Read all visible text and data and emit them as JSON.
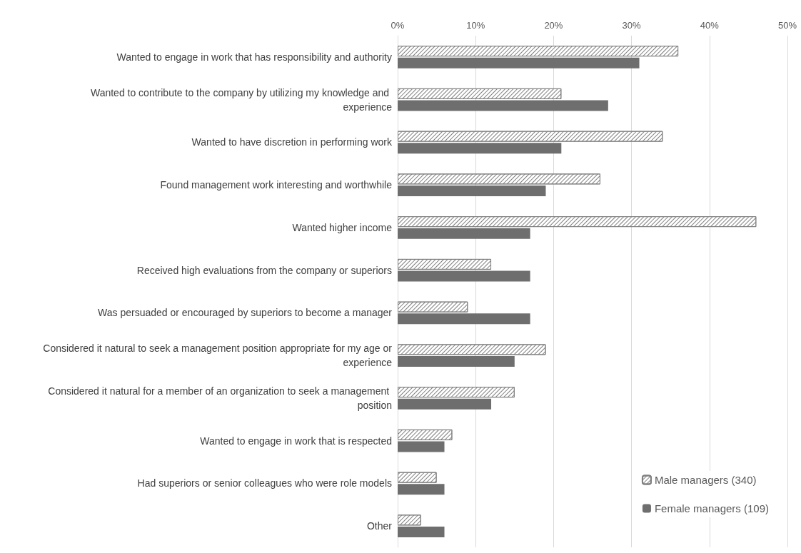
{
  "chart_data": {
    "type": "bar",
    "orientation": "horizontal",
    "categories": [
      "Wanted to engage in work that has responsibility and authority",
      "Wanted to contribute to the company by utilizing my knowledge and experience",
      "Wanted to have discretion in performing work",
      "Found management work interesting and worthwhile",
      "Wanted higher income",
      "Received high evaluations from the company or superiors",
      "Was persuaded or encouraged by superiors to become a manager",
      "Considered it natural to seek a management position appropriate for my age or experience",
      "Considered it natural for a member of an organization to seek a management position",
      "Wanted to engage in work that is respected",
      "Had superiors or senior colleagues who were role models",
      "Other"
    ],
    "series": [
      {
        "name": "Male managers (340)",
        "color": "#808080",
        "values": [
          36,
          21,
          34,
          26,
          46,
          12,
          9,
          19,
          15,
          7,
          5,
          3
        ]
      },
      {
        "name": "Female managers (109)",
        "color": "#6e6e6e",
        "values": [
          31,
          27,
          21,
          19,
          17,
          17,
          17,
          15,
          12,
          6,
          6,
          6
        ]
      }
    ],
    "xlim": [
      0,
      50
    ],
    "xticks": [
      {
        "value": 0,
        "label": "0%"
      },
      {
        "value": 10,
        "label": "10%"
      },
      {
        "value": 20,
        "label": "20%"
      },
      {
        "value": 30,
        "label": "30%"
      },
      {
        "value": 40,
        "label": "40%"
      },
      {
        "value": 50,
        "label": "50%"
      }
    ],
    "grid": "x",
    "legend": "bottom right"
  }
}
